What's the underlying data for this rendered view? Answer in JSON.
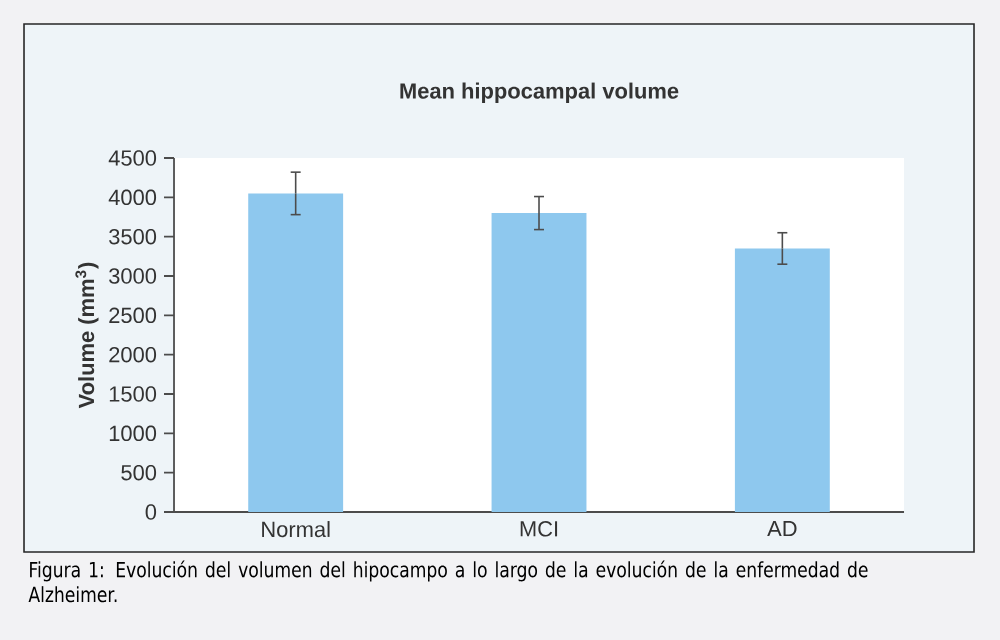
{
  "chart_data": {
    "type": "bar",
    "title": "Mean hippocampal volume",
    "ylabel": "Volume (mm$^{3}$)",
    "categories": [
      "Normal",
      "MCI",
      "AD"
    ],
    "values": [
      4050,
      3800,
      3350
    ],
    "errors": [
      270,
      210,
      200
    ],
    "color": "#8ec8ee",
    "ylim": [
      0,
      4500
    ],
    "yticks": [
      0,
      500,
      1000,
      1500,
      2000,
      2500,
      3000,
      3500,
      4000,
      4500
    ],
    "annotations": [
      "Figura 1: Evolución del volumen del hipocampo a lo largo de la evolución de la enfermedad de Alzheimer."
    ]
  }
}
